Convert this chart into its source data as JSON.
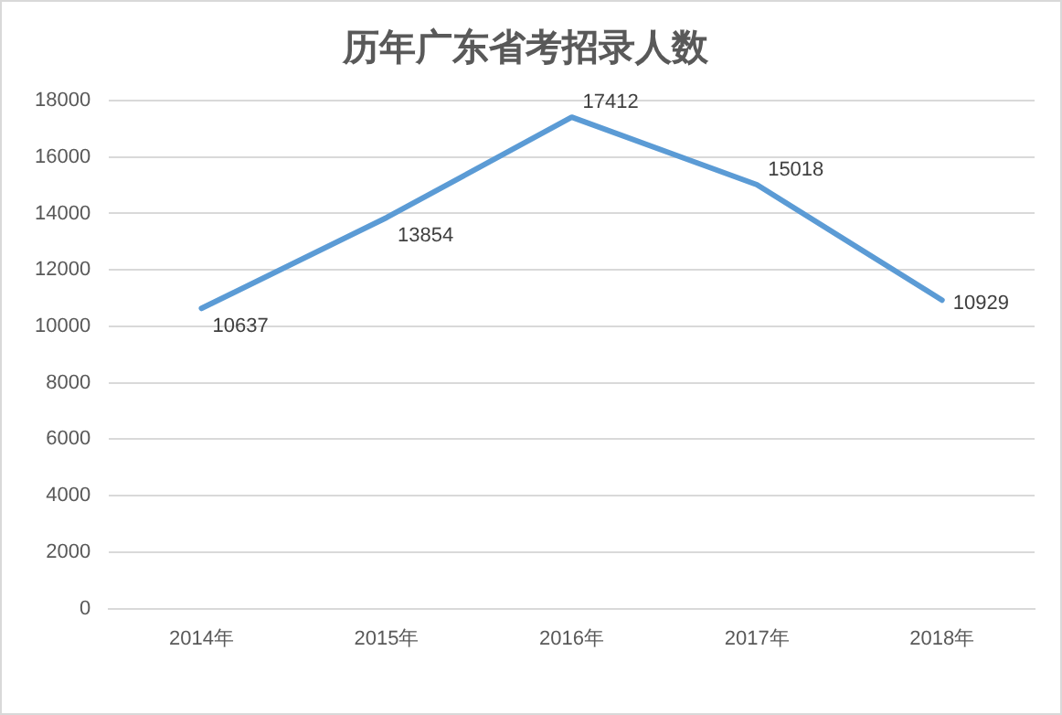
{
  "chart_data": {
    "type": "line",
    "title": "历年广东省考招录人数",
    "categories": [
      "2014年",
      "2015年",
      "2016年",
      "2017年",
      "2018年"
    ],
    "series": [
      {
        "color": "#5b9bd5",
        "values": [
          10637,
          13854,
          17412,
          15018,
          10929
        ]
      }
    ],
    "ylim": [
      0,
      18000
    ],
    "yticks": [
      0,
      2000,
      4000,
      6000,
      8000,
      10000,
      12000,
      14000,
      16000,
      18000
    ],
    "grid": "y",
    "legend": false,
    "marker": "none",
    "line_style": "solid",
    "data_labels": true
  }
}
